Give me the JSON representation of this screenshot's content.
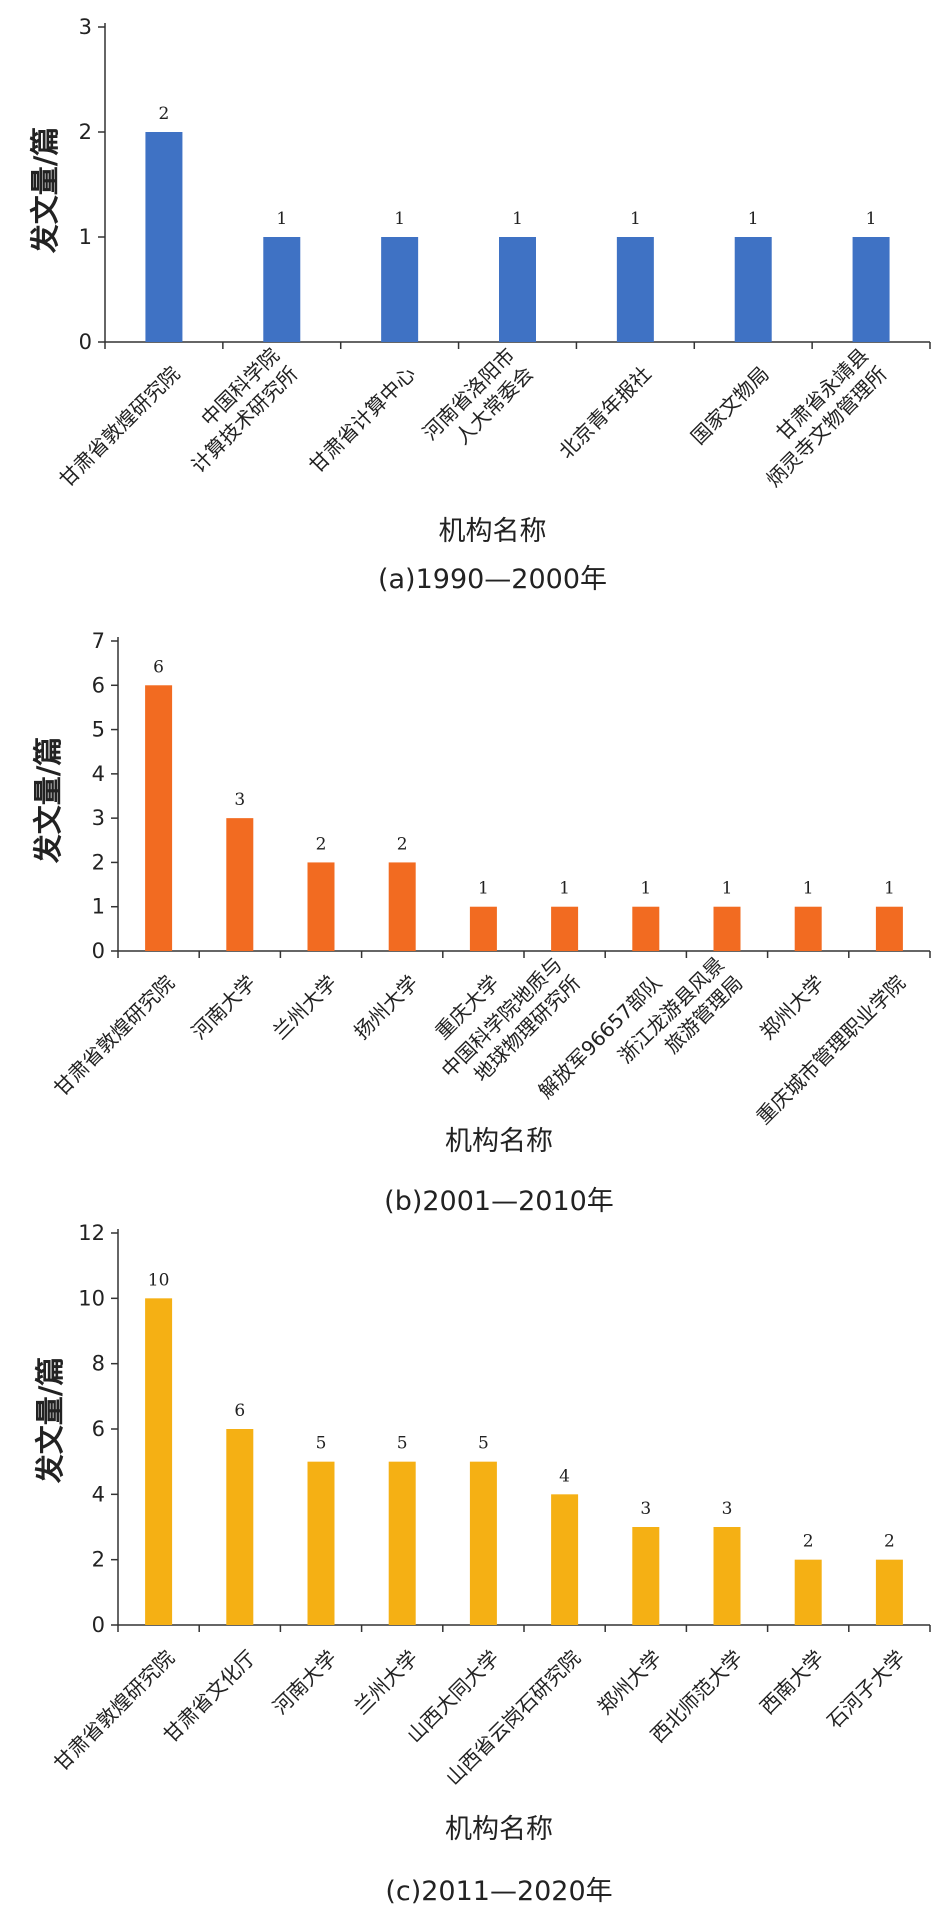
{
  "chart_data": [
    {
      "type": "bar",
      "caption": "(a)1990—2000年",
      "xlabel": "机构名称",
      "ylabel": "发文量/篇",
      "ylim": [
        0,
        3
      ],
      "yticks": [
        "0",
        "1",
        "2",
        "3"
      ],
      "color": "#3f72c4",
      "categories": [
        [
          "甘肃省敦煌研究院"
        ],
        [
          "中国科学院",
          "计算技术研究所"
        ],
        [
          "甘肃省计算中心"
        ],
        [
          "河南省洛阳市",
          "人大常委会"
        ],
        [
          "北京青年报社"
        ],
        [
          "国家文物局"
        ],
        [
          "甘肃省永靖县",
          "炳灵寺文物管理所"
        ]
      ],
      "values": [
        2,
        1,
        1,
        1,
        1,
        1,
        1
      ]
    },
    {
      "type": "bar",
      "caption": "(b)2001—2010年",
      "xlabel": "机构名称",
      "ylabel": "发文量/篇",
      "ylim": [
        0,
        7
      ],
      "yticks": [
        "0",
        "1",
        "2",
        "3",
        "4",
        "5",
        "6",
        "7"
      ],
      "color": "#f26b21",
      "categories": [
        [
          "甘肃省敦煌研究院"
        ],
        [
          "河南大学"
        ],
        [
          "兰州大学"
        ],
        [
          "扬州大学"
        ],
        [
          "重庆大学"
        ],
        [
          "中国科学院地质与",
          "地球物理研究所"
        ],
        [
          "解放军96657部队"
        ],
        [
          "浙江龙游县风景",
          "旅游管理局"
        ],
        [
          "郑州大学"
        ],
        [
          "重庆城市管理职业学院"
        ]
      ],
      "values": [
        6,
        3,
        2,
        2,
        1,
        1,
        1,
        1,
        1,
        1
      ]
    },
    {
      "type": "bar",
      "caption": "(c)2011—2020年",
      "xlabel": "机构名称",
      "ylabel": "发文量/篇",
      "ylim": [
        0,
        12
      ],
      "yticks": [
        "0",
        "2",
        "4",
        "6",
        "8",
        "10",
        "12"
      ],
      "color": "#f5b014",
      "categories": [
        [
          "甘肃省敦煌研究院"
        ],
        [
          "甘肃省文化厅"
        ],
        [
          "河南大学"
        ],
        [
          "兰州大学"
        ],
        [
          "山西大同大学"
        ],
        [
          "山西省云岗石研究院"
        ],
        [
          "郑州大学"
        ],
        [
          "西北师范大学"
        ],
        [
          "西南大学"
        ],
        [
          "石河子大学"
        ]
      ],
      "values": [
        10,
        6,
        5,
        5,
        5,
        4,
        3,
        3,
        2,
        2
      ]
    }
  ]
}
